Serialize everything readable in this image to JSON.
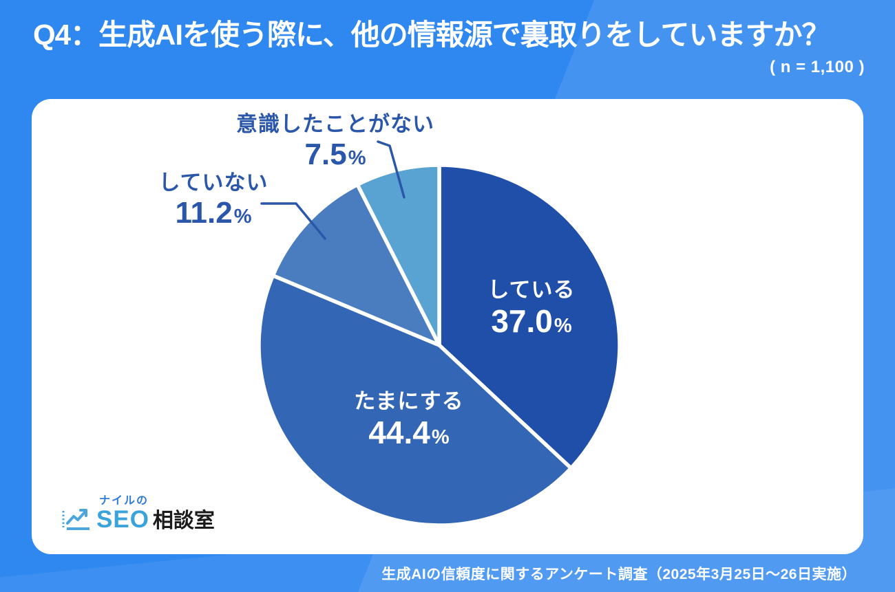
{
  "header": {
    "title": "Q4：生成AIを使う際に、他の情報源で裏取りをしていますか？",
    "sample_size": "( n = 1,100 )"
  },
  "chart_data": {
    "type": "pie",
    "title": "Q4：生成AIを使う際に、他の情報源で裏取りをしていますか？",
    "sample_size": "( n = 1,100 )",
    "unit": "%",
    "start_angle": "12-o-clock",
    "direction": "clockwise",
    "legend_position": "labels-on-and-around-slices",
    "slices": [
      {
        "label": "している",
        "value": 37.0,
        "display": "37.0",
        "color": "#1F4FA9",
        "label_placement": "inside",
        "label_color": "#FFFFFF"
      },
      {
        "label": "たまにする",
        "value": 44.4,
        "display": "44.4",
        "color": "#3366B4",
        "label_placement": "inside",
        "label_color": "#FFFFFF"
      },
      {
        "label": "していない",
        "value": 11.2,
        "display": "11.2",
        "color": "#4A7DBF",
        "label_placement": "outside-callout",
        "label_color": "#2A57A9"
      },
      {
        "label": "意識したことがない",
        "value": 7.5,
        "display": "7.5",
        "color": "#59A3D3",
        "label_placement": "outside-callout",
        "label_color": "#2A57A9"
      }
    ]
  },
  "logo": {
    "top_text": "ナイルの",
    "seo_text": "SEO",
    "suffix_text": "相談室",
    "icon": "trend-line-chart-icon",
    "seo_color": "#39A3DC",
    "top_color": "#2E7CD8",
    "suffix_color": "#1B1B1B"
  },
  "footer": {
    "source": "生成AIの信頼度に関するアンケート調査（2025年3月25日～26日実施）"
  },
  "colors": {
    "background": "#2F87F0",
    "background_accent": "#459BF5",
    "card": "#FFFFFF",
    "title_text": "#FFFFFF",
    "callout_line": "#2A57A9"
  }
}
